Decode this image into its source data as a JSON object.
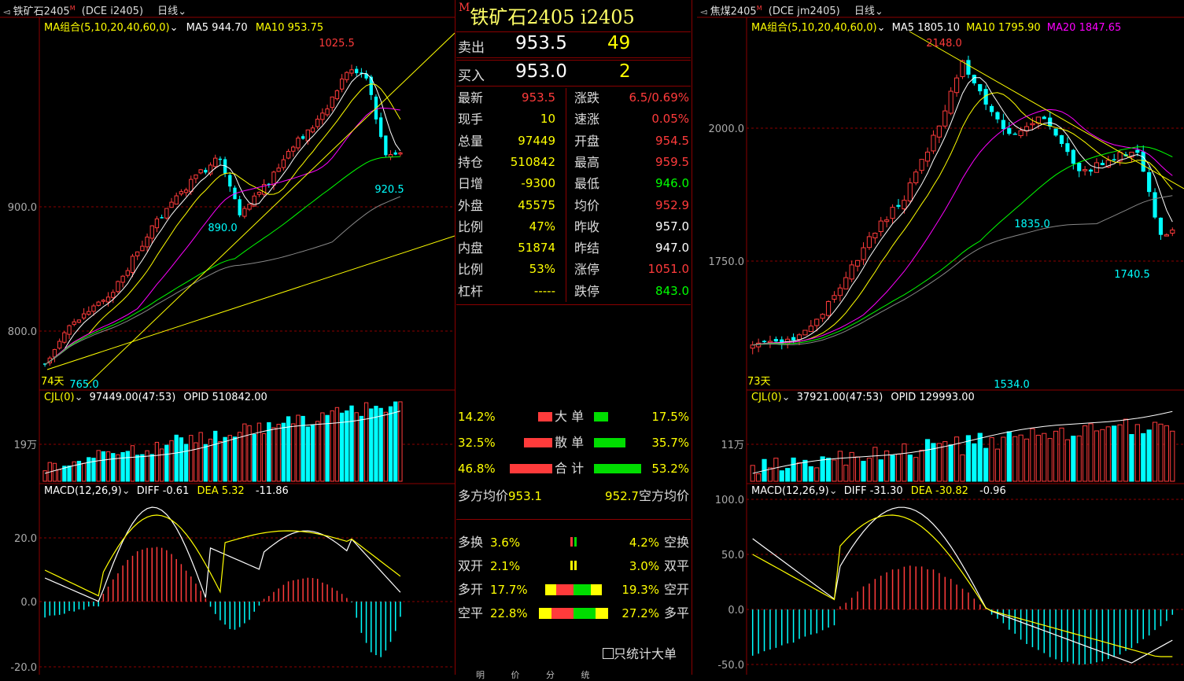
{
  "left": {
    "header": {
      "title": "铁矿石2405",
      "code": "(DCE  i2405)",
      "period": "日线"
    },
    "ma_line": {
      "label": "MA组合(5,10,20,40,60,0)",
      "ma5": "MA5 944.70",
      "ma10": "MA10 953.75"
    },
    "price_axis": [
      "900.0",
      "800.0"
    ],
    "annotations": {
      "high": "1025.5",
      "low1": "890.0",
      "low2": "920.5",
      "bottom": "765.0",
      "days": "74天"
    },
    "volume": {
      "label": "CJL(0)",
      "value": "97449.00(47:53)",
      "opid": "OPID 510842.00",
      "axis": "19万"
    },
    "macd": {
      "label": "MACD(12,26,9)",
      "diff": "DIFF -0.61",
      "dea": "DEA 5.32",
      "hist": "-11.86",
      "axis": [
        "20.0",
        "0.0",
        "-20.0"
      ]
    }
  },
  "middle": {
    "title": "铁矿石2405  i2405",
    "m_badge": "M",
    "sell": {
      "label": "卖出",
      "price": "953.5",
      "qty": "49"
    },
    "buy": {
      "label": "买入",
      "price": "953.0",
      "qty": "2"
    },
    "rows": [
      {
        "k1": "最新",
        "v1": "953.5",
        "c1": "red",
        "k2": "涨跌",
        "v2": "6.5/0.69%",
        "c2": "red"
      },
      {
        "k1": "现手",
        "v1": "10",
        "c1": "yellow",
        "k2": "速涨",
        "v2": "0.05%",
        "c2": "red"
      },
      {
        "k1": "总量",
        "v1": "97449",
        "c1": "yellow",
        "k2": "开盘",
        "v2": "954.5",
        "c2": "red"
      },
      {
        "k1": "持仓",
        "v1": "510842",
        "c1": "yellow",
        "k2": "最高",
        "v2": "959.5",
        "c2": "red"
      },
      {
        "k1": "日增",
        "v1": "-9300",
        "c1": "yellow",
        "k2": "最低",
        "v2": "946.0",
        "c2": "green"
      },
      {
        "k1": "外盘",
        "v1": "45575",
        "c1": "yellow",
        "k2": "均价",
        "v2": "952.9",
        "c2": "red"
      },
      {
        "k1": "比例",
        "v1": "47%",
        "c1": "yellow",
        "k2": "昨收",
        "v2": "957.0",
        "c2": "white"
      },
      {
        "k1": "内盘",
        "v1": "51874",
        "c1": "yellow",
        "k2": "昨结",
        "v2": "947.0",
        "c2": "white"
      },
      {
        "k1": "比例",
        "v1": "53%",
        "c1": "yellow",
        "k2": "涨停",
        "v2": "1051.0",
        "c2": "red"
      },
      {
        "k1": "杠杆",
        "v1": "-----",
        "c1": "yellow",
        "k2": "跌停",
        "v2": "843.0",
        "c2": "green"
      }
    ],
    "flow": [
      {
        "lp": "14.2%",
        "label": "大  单",
        "rp": "17.5%"
      },
      {
        "lp": "32.5%",
        "label": "散  单",
        "rp": "35.7%"
      },
      {
        "lp": "46.8%",
        "label": "合  计",
        "rp": "53.2%"
      }
    ],
    "avg": {
      "long_label": "多方均价",
      "long": "953.1",
      "short": "952.7",
      "short_label": "空方均价"
    },
    "positions": [
      {
        "l": "多换",
        "lp": "3.6%",
        "rp": "4.2%",
        "r": "空换"
      },
      {
        "l": "双开",
        "lp": "2.1%",
        "rp": "3.0%",
        "r": "双平"
      },
      {
        "l": "多开",
        "lp": "17.7%",
        "rp": "19.3%",
        "r": "空开"
      },
      {
        "l": "空平",
        "lp": "22.8%",
        "rp": "27.2%",
        "r": "多平"
      }
    ],
    "checkbox_label": "只统计大单",
    "bottom_tabs": [
      "明",
      "价",
      "分",
      "统"
    ]
  },
  "right": {
    "header": {
      "title": "焦煤2405",
      "code": "(DCE  jm2405)",
      "period": "日线"
    },
    "ma_line": {
      "label": "MA组合(5,10,20,40,60,0)",
      "ma5": "MA5 1805.10",
      "ma10": "MA10 1795.90",
      "ma20": "MA20 1847.65"
    },
    "price_axis": [
      "2000.0",
      "1750.0"
    ],
    "annotations": {
      "high": "2148.0",
      "low1": "1835.0",
      "low2": "1740.5",
      "bottom": "1534.0",
      "days": "73天"
    },
    "volume": {
      "label": "CJL(0)",
      "value": "37921.00(47:53)",
      "opid": "OPID 129993.00",
      "axis": "11万"
    },
    "macd": {
      "label": "MACD(12,26,9)",
      "diff": "DIFF -31.30",
      "dea": "DEA -30.82",
      "hist": "-0.96",
      "axis": [
        "100.0",
        "50.0",
        "0.0",
        "-50.0"
      ]
    }
  },
  "colors": {
    "up": "#ff3b3b",
    "down": "#00ffff",
    "grid": "#8b0000",
    "ma5": "#ffffff",
    "ma10": "#ffff00",
    "ma20": "#ff00ff",
    "ma40": "#00ff00",
    "ma60": "#999999"
  }
}
